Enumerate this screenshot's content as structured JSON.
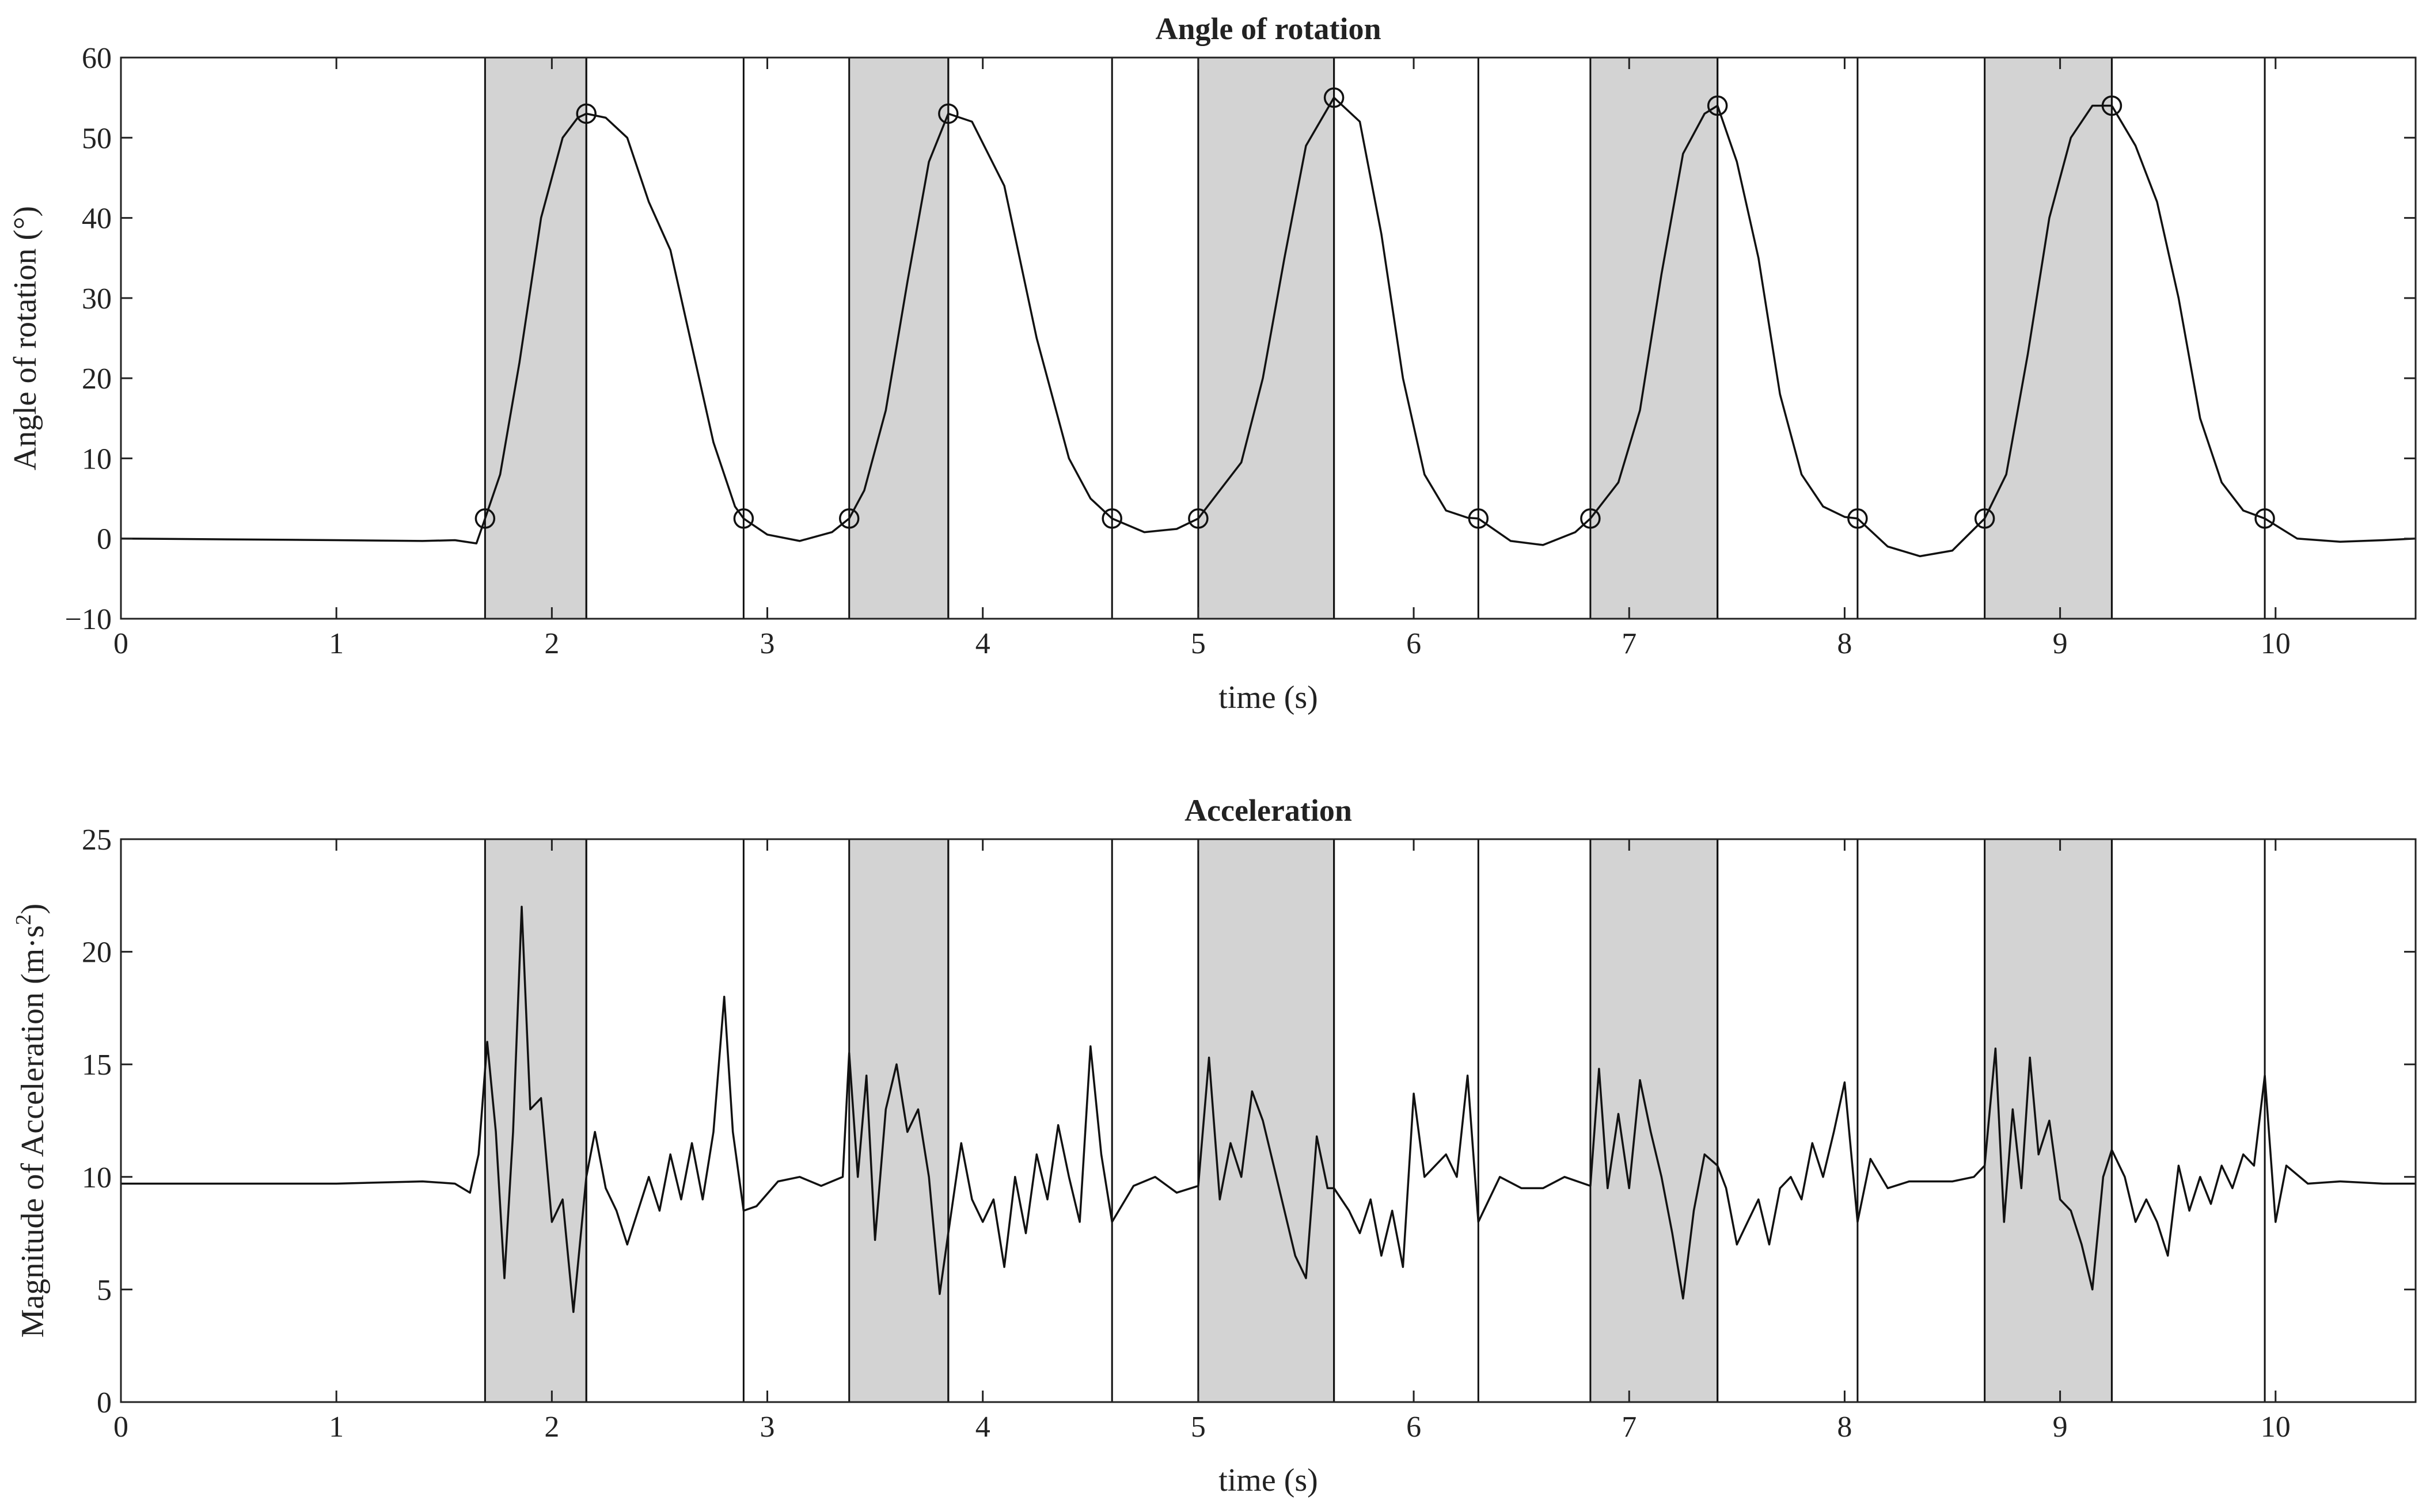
{
  "chart_data": [
    {
      "type": "line",
      "title": "Angle of rotation",
      "xlabel": "time (s)",
      "ylabel": "Angle of rotation (°)",
      "xlim": [
        0,
        10.65
      ],
      "ylim": [
        -10,
        60
      ],
      "xticks": [
        0,
        1,
        2,
        3,
        4,
        5,
        6,
        7,
        8,
        9,
        10
      ],
      "yticks": [
        -10,
        0,
        10,
        20,
        30,
        40,
        50,
        60
      ],
      "grid": false,
      "shade_color": "#d3d3d3",
      "phases": [
        {
          "shaded": [
            1.69,
            2.16
          ],
          "open": [
            2.16,
            2.89
          ]
        },
        {
          "shaded": [
            3.38,
            3.84
          ],
          "open": [
            3.84,
            4.6
          ]
        },
        {
          "shaded": [
            5.0,
            5.63
          ],
          "open": [
            5.63,
            6.3
          ]
        },
        {
          "shaded": [
            6.82,
            7.41
          ],
          "open": [
            7.41,
            8.06
          ]
        },
        {
          "shaded": [
            8.65,
            9.24
          ],
          "open": [
            9.24,
            9.95
          ]
        }
      ],
      "series": [
        {
          "x": [
            0,
            0.5,
            1.0,
            1.4,
            1.55,
            1.65,
            1.69,
            1.76,
            1.85,
            1.95,
            2.05,
            2.12,
            2.16,
            2.25,
            2.35,
            2.45,
            2.55,
            2.65,
            2.75,
            2.85,
            2.89,
            3.0,
            3.15,
            3.3,
            3.38,
            3.45,
            3.55,
            3.65,
            3.75,
            3.84,
            3.95,
            4.1,
            4.25,
            4.4,
            4.5,
            4.6,
            4.75,
            4.9,
            5.0,
            5.1,
            5.2,
            5.3,
            5.4,
            5.5,
            5.63,
            5.75,
            5.85,
            5.95,
            6.05,
            6.15,
            6.25,
            6.3,
            6.45,
            6.6,
            6.75,
            6.82,
            6.95,
            7.05,
            7.15,
            7.25,
            7.35,
            7.41,
            7.5,
            7.6,
            7.7,
            7.8,
            7.9,
            8.0,
            8.06,
            8.2,
            8.35,
            8.5,
            8.65,
            8.75,
            8.85,
            8.95,
            9.05,
            9.15,
            9.24,
            9.35,
            9.45,
            9.55,
            9.65,
            9.75,
            9.85,
            9.95,
            10.1,
            10.3,
            10.5,
            10.65
          ],
          "y": [
            0,
            -0.1,
            -0.2,
            -0.3,
            -0.2,
            -0.6,
            2.5,
            8,
            22,
            40,
            50,
            52.5,
            53,
            52.5,
            50,
            42,
            36,
            24,
            12,
            4,
            2.5,
            0.5,
            -0.3,
            0.8,
            2.5,
            6,
            16,
            32,
            47,
            53,
            52,
            44,
            25,
            10,
            5,
            2.5,
            0.8,
            1.2,
            2.5,
            6,
            9.5,
            20,
            35,
            49,
            55,
            52,
            38,
            20,
            8,
            3.5,
            2.6,
            2.5,
            -0.3,
            -0.8,
            0.8,
            2.5,
            7,
            16,
            33,
            48,
            53,
            54,
            47,
            35,
            18,
            8,
            4,
            2.7,
            2.5,
            -1,
            -2.2,
            -1.5,
            2.5,
            8,
            23,
            40,
            50,
            54,
            54,
            49,
            42,
            30,
            15,
            7,
            3.5,
            2.5,
            0,
            -0.4,
            -0.2,
            0
          ]
        }
      ],
      "markers": {
        "x": [
          1.69,
          2.16,
          2.89,
          3.38,
          3.84,
          4.6,
          5.0,
          5.63,
          6.3,
          6.82,
          7.41,
          8.06,
          8.65,
          9.24,
          9.95
        ],
        "y": [
          2.5,
          53,
          2.5,
          2.5,
          53,
          2.5,
          2.5,
          55,
          2.5,
          2.5,
          54,
          2.5,
          2.5,
          54,
          2.5
        ]
      }
    },
    {
      "type": "line",
      "title": "Acceleration",
      "xlabel": "time (s)",
      "ylabel_main": "Magnitude of Acceleration (m·s",
      "ylabel_sup": "2",
      "ylabel_end": ")",
      "xlim": [
        0,
        10.65
      ],
      "ylim": [
        0,
        25
      ],
      "xticks": [
        0,
        1,
        2,
        3,
        4,
        5,
        6,
        7,
        8,
        9,
        10
      ],
      "yticks": [
        0,
        5,
        10,
        15,
        20,
        25
      ],
      "grid": false,
      "shade_color": "#d3d3d3",
      "phases": [
        {
          "shaded": [
            1.69,
            2.16
          ],
          "open": [
            2.16,
            2.89
          ]
        },
        {
          "shaded": [
            3.38,
            3.84
          ],
          "open": [
            3.84,
            4.6
          ]
        },
        {
          "shaded": [
            5.0,
            5.63
          ],
          "open": [
            5.63,
            6.3
          ]
        },
        {
          "shaded": [
            6.82,
            7.41
          ],
          "open": [
            7.41,
            8.06
          ]
        },
        {
          "shaded": [
            8.65,
            9.24
          ],
          "open": [
            9.24,
            9.95
          ]
        }
      ],
      "series": [
        {
          "x": [
            0,
            0.5,
            1.0,
            1.4,
            1.55,
            1.62,
            1.66,
            1.7,
            1.74,
            1.78,
            1.82,
            1.86,
            1.9,
            1.95,
            2.0,
            2.05,
            2.1,
            2.16,
            2.2,
            2.25,
            2.3,
            2.35,
            2.4,
            2.45,
            2.5,
            2.55,
            2.6,
            2.65,
            2.7,
            2.75,
            2.8,
            2.84,
            2.89,
            2.95,
            3.05,
            3.15,
            3.25,
            3.35,
            3.38,
            3.42,
            3.46,
            3.5,
            3.55,
            3.6,
            3.65,
            3.7,
            3.75,
            3.8,
            3.84,
            3.9,
            3.95,
            4.0,
            4.05,
            4.1,
            4.15,
            4.2,
            4.25,
            4.3,
            4.35,
            4.4,
            4.45,
            4.5,
            4.55,
            4.6,
            4.7,
            4.8,
            4.9,
            5.0,
            5.05,
            5.1,
            5.15,
            5.2,
            5.25,
            5.3,
            5.35,
            5.4,
            5.45,
            5.5,
            5.55,
            5.6,
            5.63,
            5.7,
            5.75,
            5.8,
            5.85,
            5.9,
            5.95,
            6.0,
            6.05,
            6.1,
            6.15,
            6.2,
            6.25,
            6.3,
            6.4,
            6.5,
            6.6,
            6.7,
            6.82,
            6.86,
            6.9,
            6.95,
            7.0,
            7.05,
            7.1,
            7.15,
            7.2,
            7.25,
            7.3,
            7.35,
            7.41,
            7.45,
            7.5,
            7.55,
            7.6,
            7.65,
            7.7,
            7.75,
            7.8,
            7.85,
            7.9,
            7.95,
            8.0,
            8.06,
            8.12,
            8.2,
            8.3,
            8.4,
            8.5,
            8.6,
            8.65,
            8.7,
            8.74,
            8.78,
            8.82,
            8.86,
            8.9,
            8.95,
            9.0,
            9.05,
            9.1,
            9.15,
            9.2,
            9.24,
            9.3,
            9.35,
            9.4,
            9.45,
            9.5,
            9.55,
            9.6,
            9.65,
            9.7,
            9.75,
            9.8,
            9.85,
            9.9,
            9.95,
            10.0,
            10.05,
            10.15,
            10.3,
            10.5,
            10.65
          ],
          "y": [
            9.7,
            9.7,
            9.7,
            9.8,
            9.7,
            9.3,
            11,
            16,
            12,
            5.5,
            12,
            22,
            13,
            13.5,
            8,
            9,
            4,
            10,
            12,
            9.5,
            8.5,
            7,
            8.5,
            10,
            8.5,
            11,
            9,
            11.5,
            9,
            12,
            18,
            12,
            8.5,
            8.7,
            9.8,
            10,
            9.6,
            10,
            15.5,
            10,
            14.5,
            7.2,
            13,
            15,
            12,
            13,
            10,
            4.8,
            7.5,
            11.5,
            9,
            8,
            9,
            6,
            10,
            7.5,
            11,
            9,
            12.3,
            10,
            8,
            15.8,
            11,
            8,
            9.6,
            10,
            9.3,
            9.6,
            15.3,
            9,
            11.5,
            10,
            13.8,
            12.5,
            10.5,
            8.5,
            6.5,
            5.5,
            11.8,
            9.5,
            9.5,
            8.5,
            7.5,
            9,
            6.5,
            8.5,
            6,
            13.7,
            10,
            10.5,
            11,
            10,
            14.5,
            8,
            10,
            9.5,
            9.5,
            10,
            9.6,
            14.8,
            9.5,
            12.8,
            9.5,
            14.3,
            12,
            10,
            7.5,
            4.6,
            8.5,
            11,
            10.5,
            9.5,
            7,
            8,
            9,
            7,
            9.5,
            10,
            9,
            11.5,
            10,
            12,
            14.2,
            8,
            10.8,
            9.5,
            9.8,
            9.8,
            9.8,
            10,
            10.5,
            15.7,
            8,
            13,
            9.5,
            15.3,
            11,
            12.5,
            9,
            8.5,
            7,
            5,
            10,
            11.2,
            10,
            8,
            9,
            8,
            6.5,
            10.5,
            8.5,
            10,
            8.8,
            10.5,
            9.5,
            11,
            10.5,
            14.5,
            8,
            10.5,
            9.7,
            9.8,
            9.7,
            9.7
          ]
        }
      ]
    }
  ]
}
